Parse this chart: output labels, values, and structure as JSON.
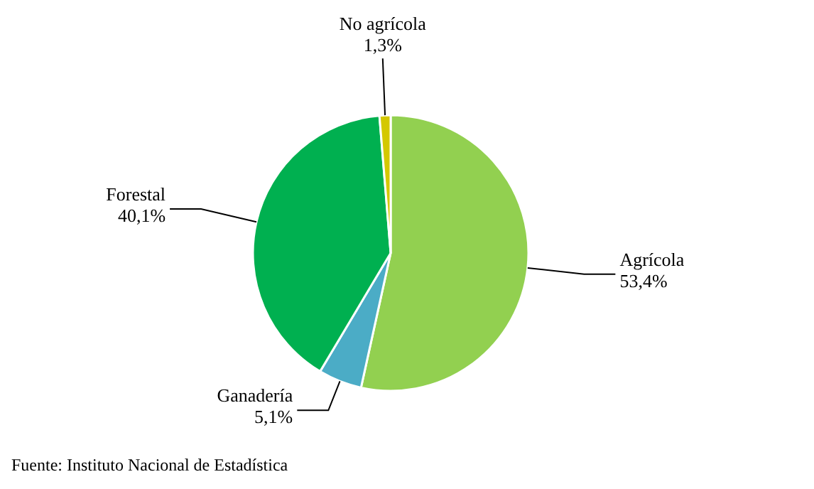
{
  "chart_data": {
    "type": "pie",
    "categories": [
      "Agrícola",
      "Ganadería",
      "Forestal",
      "No agrícola"
    ],
    "values": [
      53.4,
      5.1,
      40.1,
      1.3
    ],
    "colors": [
      "#92d050",
      "#4bacc6",
      "#00b050",
      "#d4c800"
    ],
    "value_labels": [
      "53,4%",
      "5,1%",
      "40,1%",
      "1,3%"
    ],
    "annotations": [
      "Fuente: Instituto Nacional de Estadística"
    ]
  }
}
